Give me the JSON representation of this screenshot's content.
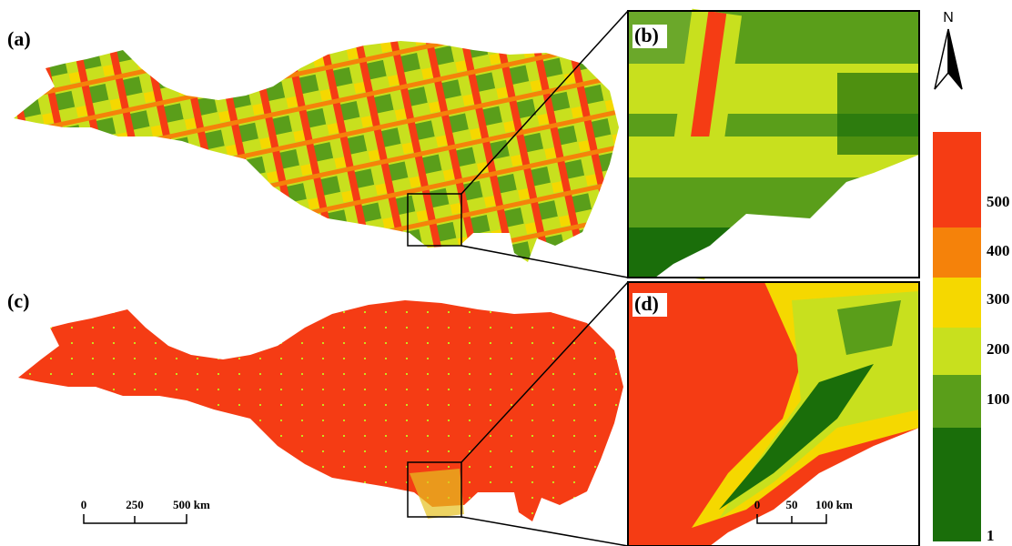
{
  "panels": [
    {
      "label": "(a)"
    },
    {
      "label": "(b)"
    },
    {
      "label": "(c)"
    },
    {
      "label": "(d)"
    }
  ],
  "north_arrow": {
    "label": "N"
  },
  "legend": {
    "colors": [
      "#f53c14",
      "#f5820a",
      "#f5d800",
      "#c8e01e",
      "#5a9e1a",
      "#1a6e0a"
    ],
    "labels": [
      "500",
      "400",
      "300",
      "200",
      "100",
      "1"
    ]
  },
  "scale_bars": [
    {
      "labels": [
        "0",
        "250",
        "500 km"
      ]
    },
    {
      "labels": [
        "0",
        "50",
        "100 km"
      ]
    }
  ]
}
